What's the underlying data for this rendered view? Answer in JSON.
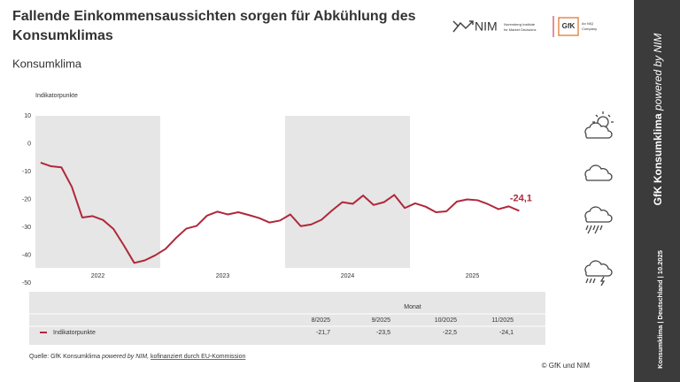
{
  "header": {
    "title_lines": [
      "Fallende Einkommensaussichten sorgen für Abkühlung des",
      "Konsumklimas"
    ],
    "subtitle": "Konsumklima"
  },
  "logos": {
    "nim": "NIM",
    "nim_sub": [
      "Nuremberg Institute",
      "for Market Decisions"
    ],
    "gfk": "GfK",
    "gfk_sub": [
      "An NIQ",
      "Company"
    ]
  },
  "chart_data": {
    "type": "line",
    "y_label": "Indikatorpunkte",
    "categories": [
      null,
      null,
      null,
      null,
      null,
      "2022",
      null,
      null,
      null,
      null,
      null,
      null,
      null,
      null,
      null,
      null,
      null,
      "2023",
      null,
      null,
      null,
      null,
      null,
      null,
      null,
      null,
      null,
      null,
      null,
      "2024",
      null,
      null,
      null,
      null,
      null,
      null,
      null,
      null,
      null,
      null,
      null,
      "2025",
      null,
      null,
      null,
      null,
      null
    ],
    "series": [
      {
        "name": "Indikatorpunkte",
        "color": "#b0283a",
        "values": [
          -6.8,
          -8.1,
          -8.5,
          -15.5,
          -26.5,
          -26.0,
          -27.4,
          -30.6,
          -36.5,
          -42.8,
          -41.9,
          -40.1,
          -37.8,
          -33.9,
          -30.5,
          -29.5,
          -25.8,
          -24.4,
          -25.4,
          -24.6,
          -25.6,
          -26.7,
          -28.3,
          -27.6,
          -25.4,
          -29.6,
          -29.0,
          -27.3,
          -24.0,
          -21.0,
          -21.6,
          -18.6,
          -22.0,
          -21.0,
          -18.4,
          -23.1,
          -21.4,
          -22.6,
          -24.6,
          -24.3,
          -20.8,
          -20.0,
          -20.3,
          -21.7,
          -23.5,
          -22.5,
          -24.1
        ],
        "value_labels": [
          null,
          null,
          null,
          null,
          null,
          null,
          null,
          null,
          null,
          null,
          null,
          null,
          null,
          null,
          null,
          null,
          null,
          null,
          null,
          null,
          null,
          null,
          null,
          null,
          null,
          null,
          null,
          null,
          null,
          null,
          null,
          null,
          null,
          null,
          null,
          null,
          null,
          null,
          null,
          null,
          null,
          null,
          null,
          null,
          null,
          null,
          "-24,1"
        ]
      }
    ],
    "ylim": [
      -50,
      10
    ],
    "yticks": [
      10,
      0,
      -10,
      -20,
      -30,
      -40,
      -50
    ],
    "grid": false
  },
  "table": {
    "group_header": "Monat",
    "columns": [
      "8/2025",
      "9/2025",
      "10/2025",
      "11/2025"
    ],
    "rows": [
      {
        "label": "Indikatorpunkte",
        "cells": [
          "-21,7",
          "-23,5",
          "-22,5",
          "-24,1"
        ]
      }
    ]
  },
  "source": [
    "Quelle: GfK Konsumklima",
    "powered by NIM,",
    "kofinanziert durch EU-Kommission"
  ],
  "copyright": "© GfK und NIM",
  "sidebar": {
    "title": "GfK Konsumklima",
    "title_italic": "powered by NIM",
    "footer": "Konsumklima | Deutschland | 10.2025"
  }
}
